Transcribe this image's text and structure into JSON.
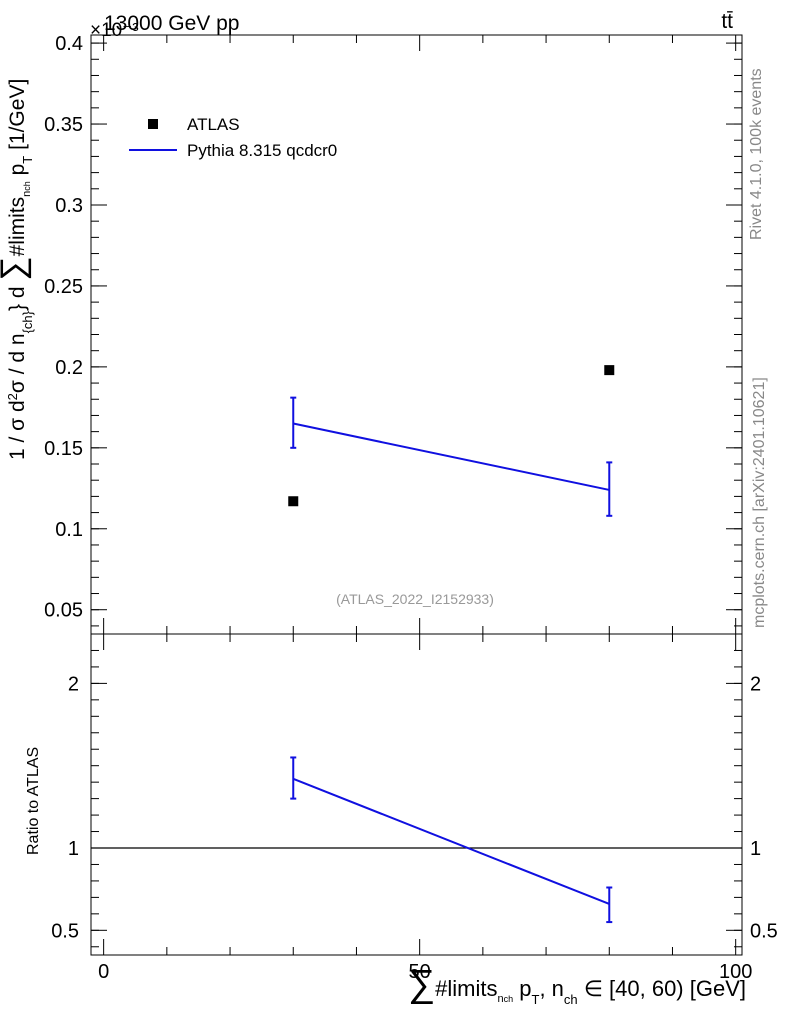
{
  "header": {
    "left": "13000 GeV pp",
    "right": "tt̄",
    "exponent": "×10⁻³"
  },
  "side_text": {
    "rivet": "Rivet 4.1.0,  100k events",
    "mcplots": "mcplots.cern.ch [arXiv:2401.10621]"
  },
  "watermark": "(ATLAS_2022_I2152933)",
  "chart_data": [
    {
      "type": "scatter",
      "panel": "main",
      "ylabel": "1 / σ d²σ / d n_{ch} d ∑#limits_{n_{ch}} p_{T} [1/GeV]",
      "ylim": [
        0.035,
        0.405
      ],
      "y_scale_label": "×10⁻³",
      "yticks": [
        "0.05",
        "0.1",
        "0.15",
        "0.2",
        "0.25",
        "0.3",
        "0.35",
        "0.4"
      ],
      "xlim": [
        -2,
        101
      ],
      "series": [
        {
          "name": "ATLAS",
          "kind": "markers",
          "color": "#000000",
          "x": [
            30,
            80
          ],
          "y": [
            0.117,
            0.198
          ]
        },
        {
          "name": "Pythia 8.315 qcdcr0",
          "kind": "line-with-errors",
          "color": "#1010e0",
          "x": [
            30,
            80
          ],
          "y": [
            0.165,
            0.124
          ],
          "err_low": [
            0.15,
            0.108
          ],
          "err_high": [
            0.181,
            0.141
          ]
        }
      ],
      "legend": {
        "placement": "top-left"
      }
    },
    {
      "type": "line",
      "panel": "ratio",
      "ylabel": "Ratio to ATLAS",
      "ylim": [
        0.35,
        2.3
      ],
      "yticks": [
        "0.5",
        "1",
        "2"
      ],
      "xlim": [
        -2,
        101
      ],
      "xlabel": "∑#limits_{n_{ch}} p_{T}, n_{ch} ∈ [40, 60) [GeV]",
      "xticks": [
        "0",
        "50",
        "100"
      ],
      "reference_line": 1,
      "series": [
        {
          "name": "Pythia 8.315 qcdcr0",
          "color": "#1010e0",
          "x": [
            30,
            80
          ],
          "y": [
            1.42,
            0.66
          ],
          "err_low": [
            1.3,
            0.55
          ],
          "err_high": [
            1.55,
            0.76
          ]
        }
      ]
    }
  ]
}
